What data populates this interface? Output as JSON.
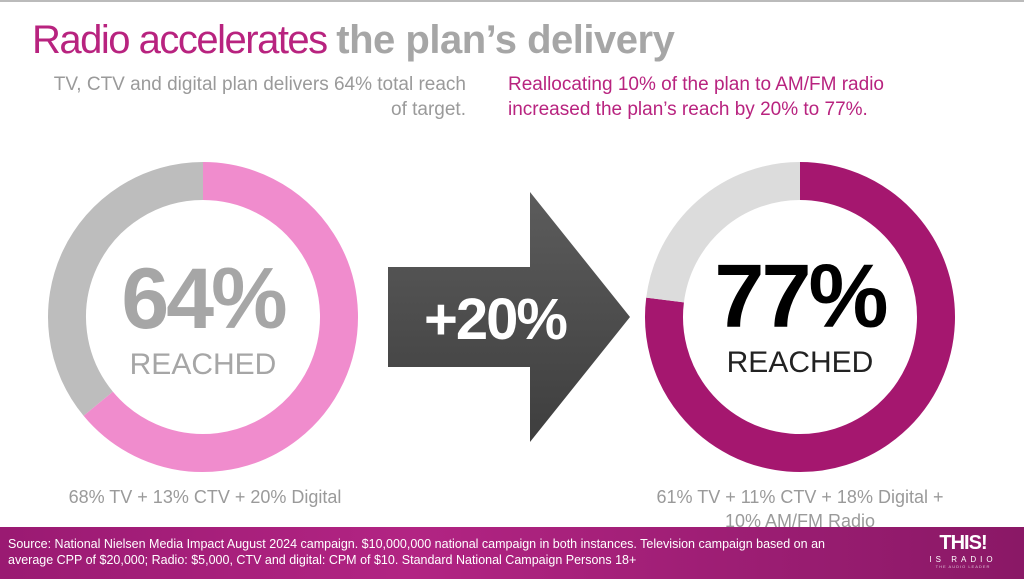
{
  "title": {
    "part1": "Radio accelerates ",
    "part2": "the plan’s delivery"
  },
  "subtitle_left": "TV, CTV and digital plan delivers 64% total reach of target.",
  "subtitle_right": "Reallocating 10% of the plan to AM/FM radio increased the plan’s reach by 20% to 77%.",
  "arrow_label": "+20%",
  "chart_data": [
    {
      "type": "pie",
      "variant": "donut",
      "center_value": "64%",
      "center_label": "REACHED",
      "caption": "68% TV + 13% CTV + 20% Digital",
      "values": [
        64,
        36
      ],
      "colors": [
        "#f08ccd",
        "#bdbdbd"
      ],
      "center_color": "#a6a6a6"
    },
    {
      "type": "pie",
      "variant": "donut",
      "center_value": "77%",
      "center_label": "REACHED",
      "caption": "61% TV + 11% CTV + 18% Digital + 10% AM/FM Radio",
      "values": [
        77,
        23
      ],
      "colors": [
        "#a5176f",
        "#dcdcdc"
      ],
      "center_color": "#000000"
    }
  ],
  "footer": {
    "source": "Source: National Nielsen Media Impact August 2024 campaign.  $10,000,000 national campaign in both instances. Television campaign based on an average CPP of $20,000; Radio: $5,000, CTV and digital: CPM of $10. Standard National Campaign Persons 18+",
    "logo_line1": "THIS!",
    "logo_line2": "IS RADIO",
    "logo_line3": "THE AUDIO LEADER"
  }
}
